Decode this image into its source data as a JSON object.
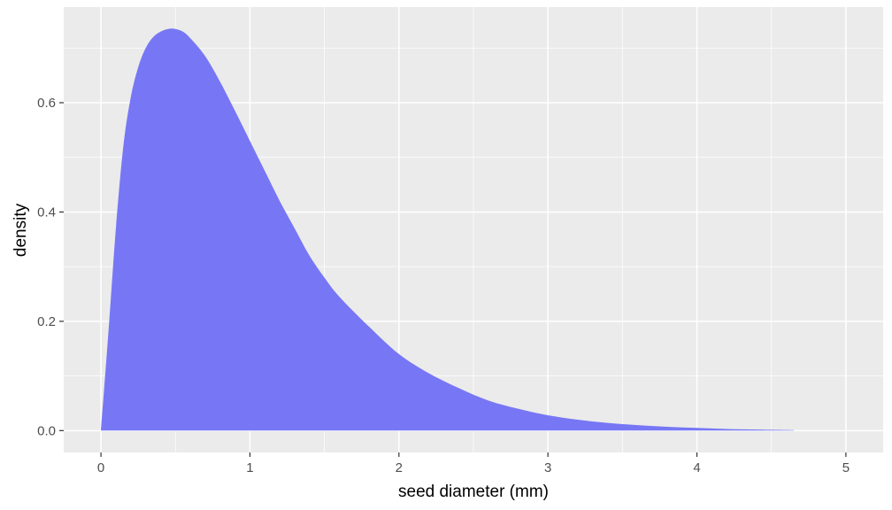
{
  "chart_data": {
    "type": "area",
    "title": "",
    "xlabel": "seed diameter (mm)",
    "ylabel": "density",
    "xlim": [
      -0.25,
      5.25
    ],
    "ylim": [
      -0.04,
      0.775
    ],
    "x_ticks": [
      0,
      1,
      2,
      3,
      4,
      5
    ],
    "x_tick_labels": [
      "0",
      "1",
      "2",
      "3",
      "4",
      "5"
    ],
    "y_ticks": [
      0.0,
      0.2,
      0.4,
      0.6
    ],
    "y_tick_labels": [
      "0.0",
      "0.2",
      "0.4",
      "0.6"
    ],
    "grid": true,
    "legend": "none",
    "colors": {
      "panel_background": "#ebebeb",
      "grid": "#ffffff",
      "fill": "#7777f5"
    },
    "series": [
      {
        "x": [
          0,
          0.05,
          0.1,
          0.15,
          0.2,
          0.25,
          0.3,
          0.35,
          0.4,
          0.45,
          0.5,
          0.55,
          0.6,
          0.7,
          0.8,
          0.9,
          1.0,
          1.1,
          1.2,
          1.3,
          1.4,
          1.5,
          1.6,
          1.8,
          2.0,
          2.2,
          2.4,
          2.6,
          2.8,
          3.0,
          3.2,
          3.4,
          3.6,
          3.8,
          4.0,
          4.2,
          4.4,
          4.65
        ],
        "y": [
          0,
          0.18,
          0.37,
          0.52,
          0.61,
          0.665,
          0.7,
          0.72,
          0.73,
          0.735,
          0.735,
          0.73,
          0.718,
          0.685,
          0.638,
          0.585,
          0.53,
          0.475,
          0.42,
          0.37,
          0.32,
          0.28,
          0.245,
          0.19,
          0.14,
          0.105,
          0.078,
          0.055,
          0.04,
          0.028,
          0.02,
          0.014,
          0.01,
          0.007,
          0.005,
          0.003,
          0.002,
          0.001
        ]
      }
    ]
  }
}
